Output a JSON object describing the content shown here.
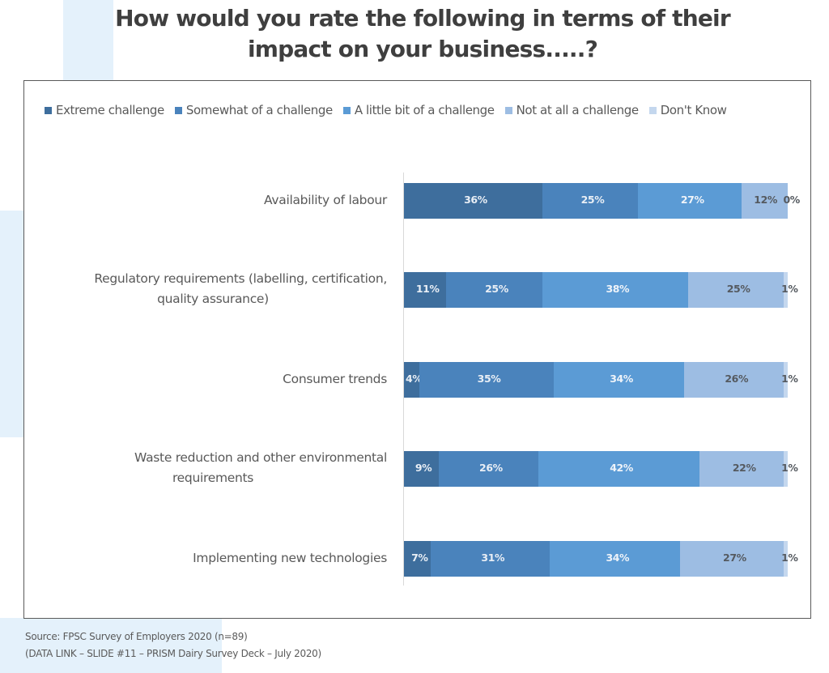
{
  "title": {
    "line1": "How would you rate the following in terms of their",
    "line2": "impact on your business.....?"
  },
  "source": {
    "line1": "Source: FPSC Survey of Employers 2020 (n=89)",
    "line2": "(DATA LINK – SLIDE #11 – PRISM Dairy Survey Deck – July 2020)"
  },
  "chart_data": {
    "type": "bar",
    "orientation": "horizontal",
    "stacked": "100%",
    "title": "How would you rate the following in terms of their impact on your business.....?",
    "xlabel": "",
    "ylabel": "",
    "xlim": [
      0,
      100
    ],
    "grid": false,
    "legend_position": "top",
    "categories": [
      "Availability of labour",
      "Regulatory requirements (labelling, certification, quality assurance)",
      "Consumer trends",
      "Waste reduction and other environmental requirements",
      "Implementing new technologies"
    ],
    "category_lines": [
      [
        "Availability of labour"
      ],
      [
        "Regulatory requirements (labelling, certification,",
        "quality assurance)"
      ],
      [
        "Consumer trends"
      ],
      [
        "Waste reduction and other environmental",
        "requirements"
      ],
      [
        "Implementing new technologies"
      ]
    ],
    "series": [
      {
        "name": "Extreme challenge",
        "color": "#3e6e9d",
        "label_color": "#e8eef5",
        "values": [
          36,
          11,
          4,
          9,
          7
        ]
      },
      {
        "name": "Somewhat of a challenge",
        "color": "#4a83bc",
        "label_color": "#e8eef5",
        "values": [
          25,
          25,
          35,
          26,
          31
        ]
      },
      {
        "name": "A little bit of a challenge",
        "color": "#5b9bd5",
        "label_color": "#eef3f9",
        "values": [
          27,
          38,
          34,
          42,
          34
        ]
      },
      {
        "name": "Not at all a challenge",
        "color": "#9dbde3",
        "label_color": "#555a60",
        "values": [
          12,
          25,
          26,
          22,
          27
        ]
      },
      {
        "name": "Don't Know",
        "color": "#c4d7ee",
        "label_color": "#555a60",
        "values": [
          0,
          1,
          1,
          1,
          1
        ]
      }
    ],
    "data_labels": [
      [
        "36%",
        "25%",
        "27%",
        "12%",
        "0%"
      ],
      [
        "11%",
        "25%",
        "38%",
        "25%",
        "1%"
      ],
      [
        "4%",
        "35%",
        "34%",
        "26%",
        "1%"
      ],
      [
        "9%",
        "26%",
        "42%",
        "22%",
        "1%"
      ],
      [
        "7%",
        "31%",
        "34%",
        "27%",
        "1%"
      ]
    ]
  }
}
